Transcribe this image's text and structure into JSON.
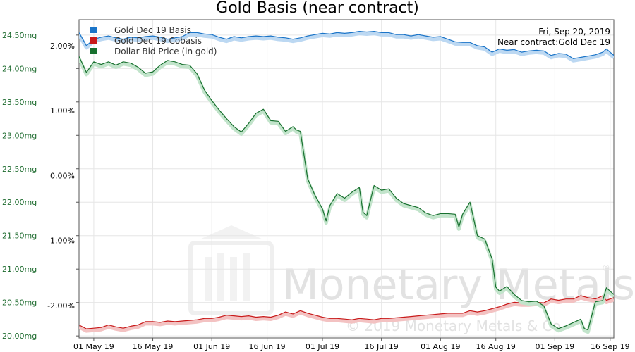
{
  "chart_data": {
    "type": "line",
    "title": "Gold Basis (near contract)",
    "info": {
      "date": "Fri, Sep 20, 2019",
      "contract": "Near contract:Gold Dec 19"
    },
    "legend_position": "top-left",
    "legend": [
      {
        "name": "Gold Dec 19 Basis",
        "color": "#1a74c8"
      },
      {
        "name": "Gold Dec 19 Cobasis",
        "color": "#c81a1a"
      },
      {
        "name": "Dollar Bid Price (in gold)",
        "color": "#17702e"
      }
    ],
    "x_ticks": [
      "01 May 19",
      "16 May 19",
      "01 Jun 19",
      "16 Jun 19",
      "01 Jul 19",
      "16 Jul 19",
      "01 Aug 19",
      "16 Aug 19",
      "01 Sep 19",
      "16 Sep 19"
    ],
    "x_range_day": [
      0,
      145
    ],
    "left_axis": {
      "ticks": [
        "24.50mg",
        "24.00mg",
        "23.50mg",
        "23.00mg",
        "22.50mg",
        "22.00mg",
        "21.50mg",
        "21.00mg",
        "20.50mg",
        "20.00mg"
      ],
      "values": [
        24.5,
        24.0,
        23.5,
        23.0,
        22.5,
        22.0,
        21.5,
        21.0,
        20.5,
        20.0
      ],
      "range": [
        19.97,
        24.73
      ],
      "color": "#1d6b2e"
    },
    "right_axis": {
      "ticks": [
        "2.00%",
        "1.00%",
        "0.00%",
        "-1.00%",
        "-2.00%"
      ],
      "values": [
        2.0,
        1.0,
        0.0,
        -1.0,
        -2.0
      ],
      "range": [
        -2.5,
        2.4
      ]
    },
    "grid": true,
    "series": [
      {
        "name": "Gold Dec 19 Basis",
        "axis": "right",
        "color": "#1a74c8",
        "points": [
          [
            0,
            2.2
          ],
          [
            2,
            2.0
          ],
          [
            4,
            2.1
          ],
          [
            6,
            2.13
          ],
          [
            8,
            2.15
          ],
          [
            10,
            2.12
          ],
          [
            12,
            2.1
          ],
          [
            14,
            2.13
          ],
          [
            16,
            2.12
          ],
          [
            18,
            2.14
          ],
          [
            20,
            2.15
          ],
          [
            22,
            2.13
          ],
          [
            24,
            2.1
          ],
          [
            26,
            2.12
          ],
          [
            28,
            2.14
          ],
          [
            30,
            2.2
          ],
          [
            32,
            2.2
          ],
          [
            34,
            2.18
          ],
          [
            36,
            2.17
          ],
          [
            38,
            2.13
          ],
          [
            40,
            2.1
          ],
          [
            42,
            2.14
          ],
          [
            44,
            2.12
          ],
          [
            46,
            2.14
          ],
          [
            48,
            2.15
          ],
          [
            50,
            2.14
          ],
          [
            52,
            2.15
          ],
          [
            54,
            2.13
          ],
          [
            56,
            2.12
          ],
          [
            58,
            2.1
          ],
          [
            60,
            2.12
          ],
          [
            62,
            2.15
          ],
          [
            64,
            2.17
          ],
          [
            66,
            2.19
          ],
          [
            68,
            2.18
          ],
          [
            70,
            2.2
          ],
          [
            72,
            2.19
          ],
          [
            74,
            2.2
          ],
          [
            76,
            2.22
          ],
          [
            78,
            2.21
          ],
          [
            80,
            2.22
          ],
          [
            82,
            2.2
          ],
          [
            84,
            2.2
          ],
          [
            86,
            2.17
          ],
          [
            88,
            2.17
          ],
          [
            90,
            2.15
          ],
          [
            92,
            2.17
          ],
          [
            94,
            2.15
          ],
          [
            96,
            2.13
          ],
          [
            98,
            2.14
          ],
          [
            100,
            2.1
          ],
          [
            102,
            2.06
          ],
          [
            104,
            2.05
          ],
          [
            106,
            2.05
          ],
          [
            108,
            2.0
          ],
          [
            110,
            1.98
          ],
          [
            112,
            1.9
          ],
          [
            114,
            1.95
          ],
          [
            116,
            1.93
          ],
          [
            118,
            1.94
          ],
          [
            120,
            1.9
          ],
          [
            122,
            1.92
          ],
          [
            124,
            1.93
          ],
          [
            126,
            1.92
          ],
          [
            128,
            1.85
          ],
          [
            130,
            1.88
          ],
          [
            132,
            1.87
          ],
          [
            134,
            1.8
          ],
          [
            136,
            1.82
          ],
          [
            138,
            1.84
          ],
          [
            140,
            1.86
          ],
          [
            142,
            1.9
          ],
          [
            143,
            1.95
          ],
          [
            145,
            1.85
          ]
        ]
      },
      {
        "name": "Gold Dec 19 Cobasis",
        "axis": "right",
        "color": "#c81a1a",
        "points": [
          [
            0,
            -2.3
          ],
          [
            2,
            -2.36
          ],
          [
            4,
            -2.35
          ],
          [
            6,
            -2.34
          ],
          [
            8,
            -2.3
          ],
          [
            10,
            -2.33
          ],
          [
            12,
            -2.35
          ],
          [
            14,
            -2.32
          ],
          [
            16,
            -2.3
          ],
          [
            18,
            -2.25
          ],
          [
            20,
            -2.25
          ],
          [
            22,
            -2.26
          ],
          [
            24,
            -2.24
          ],
          [
            26,
            -2.25
          ],
          [
            28,
            -2.24
          ],
          [
            30,
            -2.23
          ],
          [
            32,
            -2.22
          ],
          [
            34,
            -2.2
          ],
          [
            36,
            -2.2
          ],
          [
            38,
            -2.18
          ],
          [
            40,
            -2.15
          ],
          [
            42,
            -2.16
          ],
          [
            44,
            -2.17
          ],
          [
            46,
            -2.16
          ],
          [
            48,
            -2.18
          ],
          [
            50,
            -2.17
          ],
          [
            52,
            -2.18
          ],
          [
            54,
            -2.15
          ],
          [
            56,
            -2.1
          ],
          [
            58,
            -2.13
          ],
          [
            60,
            -2.08
          ],
          [
            62,
            -2.12
          ],
          [
            64,
            -2.15
          ],
          [
            66,
            -2.18
          ],
          [
            68,
            -2.2
          ],
          [
            70,
            -2.2
          ],
          [
            72,
            -2.21
          ],
          [
            74,
            -2.22
          ],
          [
            76,
            -2.2
          ],
          [
            78,
            -2.21
          ],
          [
            80,
            -2.22
          ],
          [
            82,
            -2.2
          ],
          [
            84,
            -2.2
          ],
          [
            86,
            -2.19
          ],
          [
            88,
            -2.18
          ],
          [
            90,
            -2.17
          ],
          [
            92,
            -2.16
          ],
          [
            94,
            -2.15
          ],
          [
            96,
            -2.14
          ],
          [
            98,
            -2.13
          ],
          [
            100,
            -2.12
          ],
          [
            102,
            -2.12
          ],
          [
            104,
            -2.12
          ],
          [
            106,
            -2.08
          ],
          [
            108,
            -2.1
          ],
          [
            110,
            -2.08
          ],
          [
            112,
            -2.05
          ],
          [
            114,
            -2.02
          ],
          [
            116,
            -1.98
          ],
          [
            118,
            -1.95
          ],
          [
            120,
            -1.96
          ],
          [
            122,
            -1.96
          ],
          [
            124,
            -1.95
          ],
          [
            126,
            -1.96
          ],
          [
            128,
            -1.9
          ],
          [
            130,
            -1.92
          ],
          [
            132,
            -1.9
          ],
          [
            134,
            -1.9
          ],
          [
            136,
            -1.85
          ],
          [
            138,
            -1.88
          ],
          [
            140,
            -1.9
          ],
          [
            142,
            -1.85
          ],
          [
            143,
            -1.92
          ],
          [
            145,
            -1.88
          ]
        ]
      },
      {
        "name": "Dollar Bid Price (in gold)",
        "axis": "left",
        "color": "#17702e",
        "points": [
          [
            0,
            24.18
          ],
          [
            2,
            23.94
          ],
          [
            4,
            24.1
          ],
          [
            6,
            24.06
          ],
          [
            8,
            24.1
          ],
          [
            10,
            24.05
          ],
          [
            12,
            24.1
          ],
          [
            14,
            24.08
          ],
          [
            16,
            24.02
          ],
          [
            18,
            23.93
          ],
          [
            20,
            23.95
          ],
          [
            22,
            24.05
          ],
          [
            24,
            24.12
          ],
          [
            26,
            24.1
          ],
          [
            28,
            24.06
          ],
          [
            30,
            24.05
          ],
          [
            32,
            23.92
          ],
          [
            34,
            23.68
          ],
          [
            36,
            23.52
          ],
          [
            38,
            23.38
          ],
          [
            40,
            23.25
          ],
          [
            42,
            23.13
          ],
          [
            44,
            23.05
          ],
          [
            46,
            23.18
          ],
          [
            48,
            23.33
          ],
          [
            50,
            23.39
          ],
          [
            52,
            23.22
          ],
          [
            54,
            23.21
          ],
          [
            56,
            23.06
          ],
          [
            58,
            23.13
          ],
          [
            59,
            23.08
          ],
          [
            60,
            23.06
          ],
          [
            62,
            22.35
          ],
          [
            64,
            22.1
          ],
          [
            66,
            21.9
          ],
          [
            67,
            21.72
          ],
          [
            68,
            21.95
          ],
          [
            70,
            22.13
          ],
          [
            72,
            22.06
          ],
          [
            74,
            22.15
          ],
          [
            76,
            22.22
          ],
          [
            77,
            21.85
          ],
          [
            78,
            21.8
          ],
          [
            80,
            22.25
          ],
          [
            82,
            22.18
          ],
          [
            84,
            22.2
          ],
          [
            86,
            22.06
          ],
          [
            88,
            21.98
          ],
          [
            90,
            21.95
          ],
          [
            92,
            21.92
          ],
          [
            94,
            21.84
          ],
          [
            96,
            21.8
          ],
          [
            98,
            21.83
          ],
          [
            100,
            21.83
          ],
          [
            102,
            21.82
          ],
          [
            103,
            21.63
          ],
          [
            104,
            21.82
          ],
          [
            106,
            22.0
          ],
          [
            108,
            21.5
          ],
          [
            110,
            21.45
          ],
          [
            112,
            21.15
          ],
          [
            113,
            20.73
          ],
          [
            114,
            20.67
          ],
          [
            116,
            20.74
          ],
          [
            118,
            20.62
          ],
          [
            120,
            20.53
          ],
          [
            122,
            20.51
          ],
          [
            124,
            20.52
          ],
          [
            126,
            20.45
          ],
          [
            128,
            20.18
          ],
          [
            130,
            20.11
          ],
          [
            132,
            20.15
          ],
          [
            134,
            20.2
          ],
          [
            136,
            20.25
          ],
          [
            137,
            20.11
          ],
          [
            138,
            20.09
          ],
          [
            140,
            20.51
          ],
          [
            142,
            20.53
          ],
          [
            143,
            20.72
          ],
          [
            145,
            20.62
          ]
        ]
      }
    ]
  },
  "watermark": {
    "brand": "Monetary Metals",
    "registered": "®",
    "copyright": "© 2019 Monetary Metals & Co."
  }
}
